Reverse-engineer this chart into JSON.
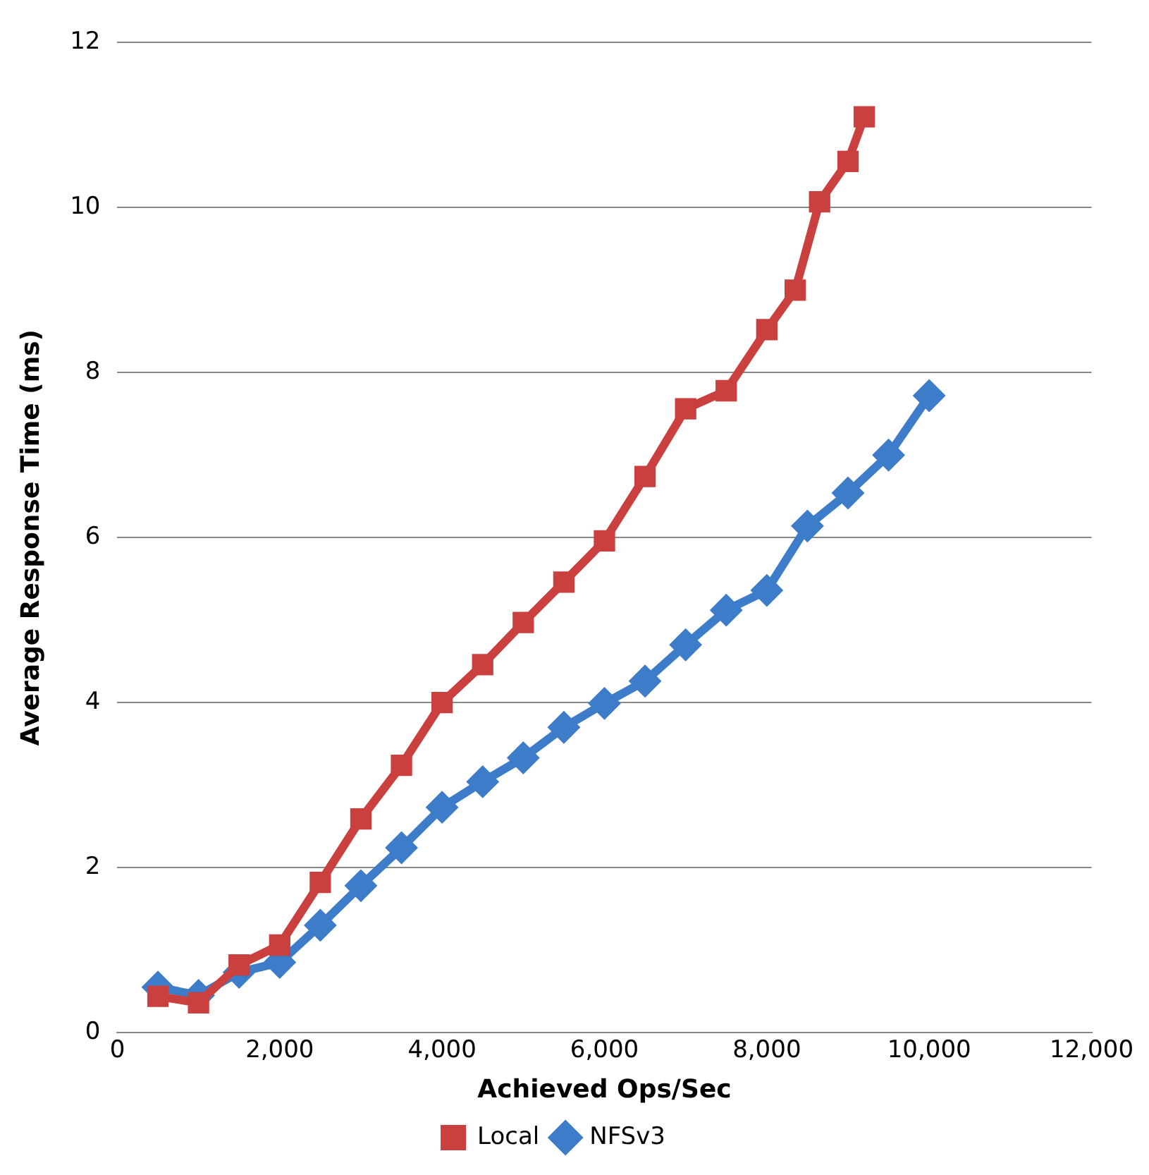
{
  "chart_data": {
    "type": "line",
    "xlabel": "Achieved Ops/Sec",
    "ylabel": "Average Response Time (ms)",
    "xlim": [
      0,
      12000
    ],
    "xticks": [
      0,
      {
        "value": 2000,
        "label": "2,000"
      },
      {
        "value": 4000,
        "label": "4,000"
      },
      {
        "value": 6000,
        "label": "6,000"
      },
      {
        "value": 8000,
        "label": "8,000"
      },
      {
        "value": 10000,
        "label": "10,000"
      },
      {
        "value": 12000,
        "label": "12,000"
      }
    ],
    "ylim": [
      0,
      12
    ],
    "yticks": [
      0,
      2,
      4,
      6,
      8,
      10,
      12
    ],
    "grid": "y",
    "legend": "bottom",
    "line_style": "solid",
    "series": [
      {
        "name": "NFSv3",
        "color": "#3d7cc9",
        "marker": "diamond",
        "x": [
          500,
          1000,
          1500,
          2000,
          2500,
          3000,
          3500,
          4000,
          4500,
          5000,
          5500,
          6000,
          6500,
          7000,
          7500,
          8000,
          8500,
          9000,
          9500,
          10000
        ],
        "values": [
          0.55,
          0.45,
          0.73,
          0.85,
          1.3,
          1.78,
          2.24,
          2.73,
          3.04,
          3.33,
          3.7,
          3.99,
          4.26,
          4.7,
          5.12,
          5.36,
          6.14,
          6.54,
          7.0,
          7.72
        ]
      },
      {
        "name": "Local",
        "color": "#c9403f",
        "marker": "square",
        "x": [
          500,
          1000,
          1500,
          2000,
          2500,
          3000,
          3500,
          4000,
          4500,
          5000,
          5500,
          6000,
          6500,
          7000,
          7500,
          8000,
          8350,
          8650,
          9000,
          9200
        ],
        "values": [
          0.44,
          0.36,
          0.82,
          1.06,
          1.82,
          2.59,
          3.24,
          4.0,
          4.46,
          4.97,
          5.46,
          5.96,
          6.74,
          7.56,
          7.78,
          8.52,
          9.0,
          10.07,
          10.56,
          11.1
        ]
      }
    ]
  }
}
